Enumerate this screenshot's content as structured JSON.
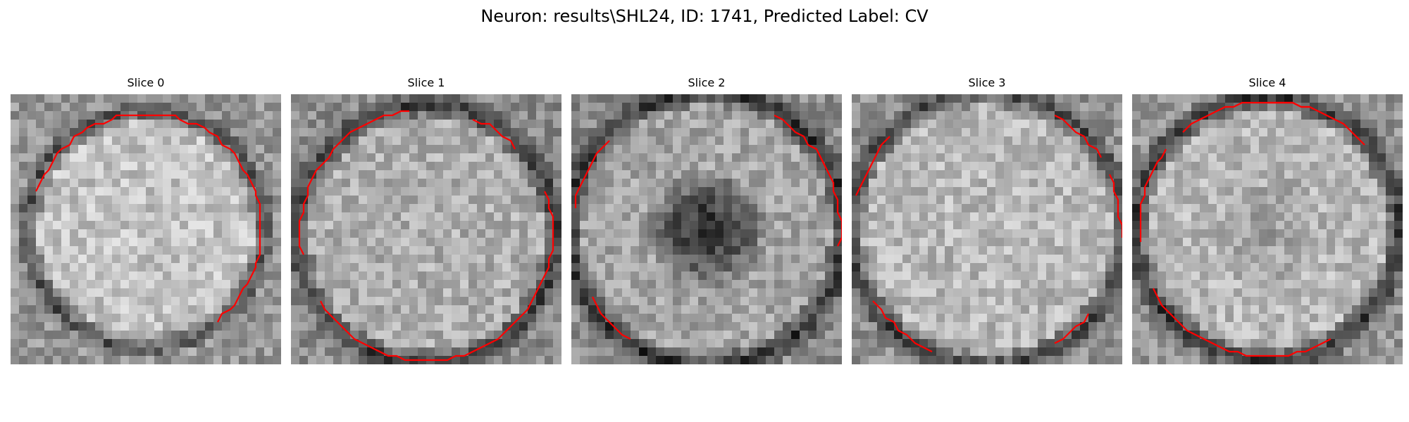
{
  "figure": {
    "title": "Neuron: results\\SHL24, ID: 1741, Predicted Label: CV"
  },
  "colors": {
    "contour": "#ff0000",
    "background": "#ffffff",
    "colormap": "gray"
  },
  "slices": [
    {
      "title": "Slice 0",
      "center_brightness": "bright",
      "center_shape": "uniform"
    },
    {
      "title": "Slice 1",
      "center_brightness": "bright",
      "center_shape": "uniform"
    },
    {
      "title": "Slice 2",
      "center_brightness": "dark",
      "center_shape": "dark-core"
    },
    {
      "title": "Slice 3",
      "center_brightness": "bright",
      "center_shape": "uniform"
    },
    {
      "title": "Slice 4",
      "center_brightness": "bright",
      "center_shape": "uniform"
    }
  ]
}
